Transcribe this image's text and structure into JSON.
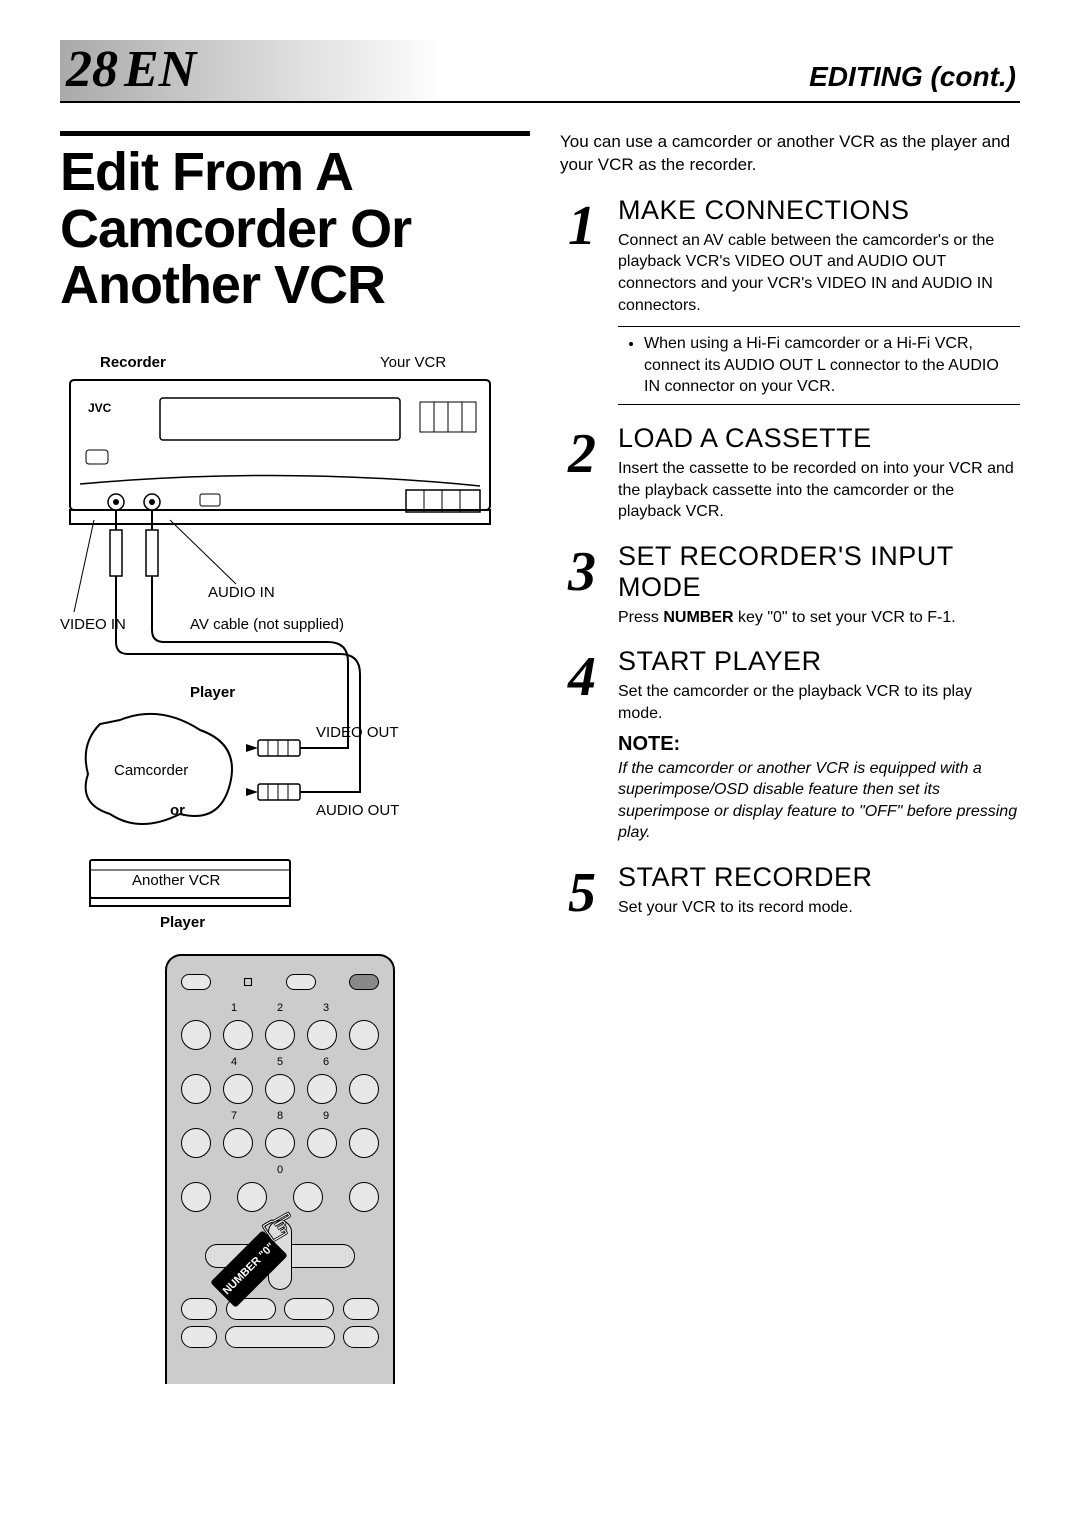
{
  "page": {
    "number": "28",
    "lang_sub": "EN",
    "section_header": "EDITING (cont.)",
    "main_title": "Edit From A Camcorder Or Another VCR"
  },
  "intro": "You can use a camcorder or another VCR as the player and your VCR as the recorder.",
  "steps": [
    {
      "num": "1",
      "title": "MAKE CONNECTIONS",
      "text": "Connect an AV cable between the camcorder's or the playback VCR's VIDEO OUT and AUDIO OUT connectors and your VCR's VIDEO IN and AUDIO IN connectors.",
      "bullet": "When using a Hi-Fi camcorder or a Hi-Fi VCR, connect its AUDIO OUT L connector to the AUDIO IN connector on your VCR."
    },
    {
      "num": "2",
      "title": "LOAD A CASSETTE",
      "text": "Insert the cassette to be recorded on into your VCR and the playback cassette into the camcorder or the playback VCR."
    },
    {
      "num": "3",
      "title": "SET RECORDER'S INPUT MODE",
      "text_html": "Press <b>NUMBER</b> key \"0\" to set your VCR to F-1."
    },
    {
      "num": "4",
      "title": "START PLAYER",
      "text": "Set the camcorder or the playback VCR to its play mode.",
      "note_heading": "NOTE:",
      "note_text": "If the camcorder or another VCR is equipped with a superimpose/OSD disable feature then set its superimpose or display feature to \"OFF\" before pressing play."
    },
    {
      "num": "5",
      "title": "START RECORDER",
      "text": "Set your VCR to its record mode."
    }
  ],
  "diagram": {
    "recorder_label": "Recorder",
    "your_vcr_label": "Your VCR",
    "brand": "JVC",
    "audio_in": "AUDIO IN",
    "video_in": "VIDEO IN",
    "av_cable": "AV cable (not supplied)",
    "player_label": "Player",
    "camcorder": "Camcorder",
    "video_out": "VIDEO OUT",
    "audio_out": "AUDIO OUT",
    "or": "or",
    "another_vcr": "Another VCR",
    "player_label2": "Player"
  },
  "remote": {
    "callout": "NUMBER \"0\"",
    "digits": [
      "1",
      "2",
      "3",
      "4",
      "5",
      "6",
      "7",
      "8",
      "9",
      "0"
    ]
  },
  "colors": {
    "text": "#000000",
    "background": "#ffffff",
    "remote_body": "#cccccc",
    "gradient_start": "#aaaaaa"
  }
}
